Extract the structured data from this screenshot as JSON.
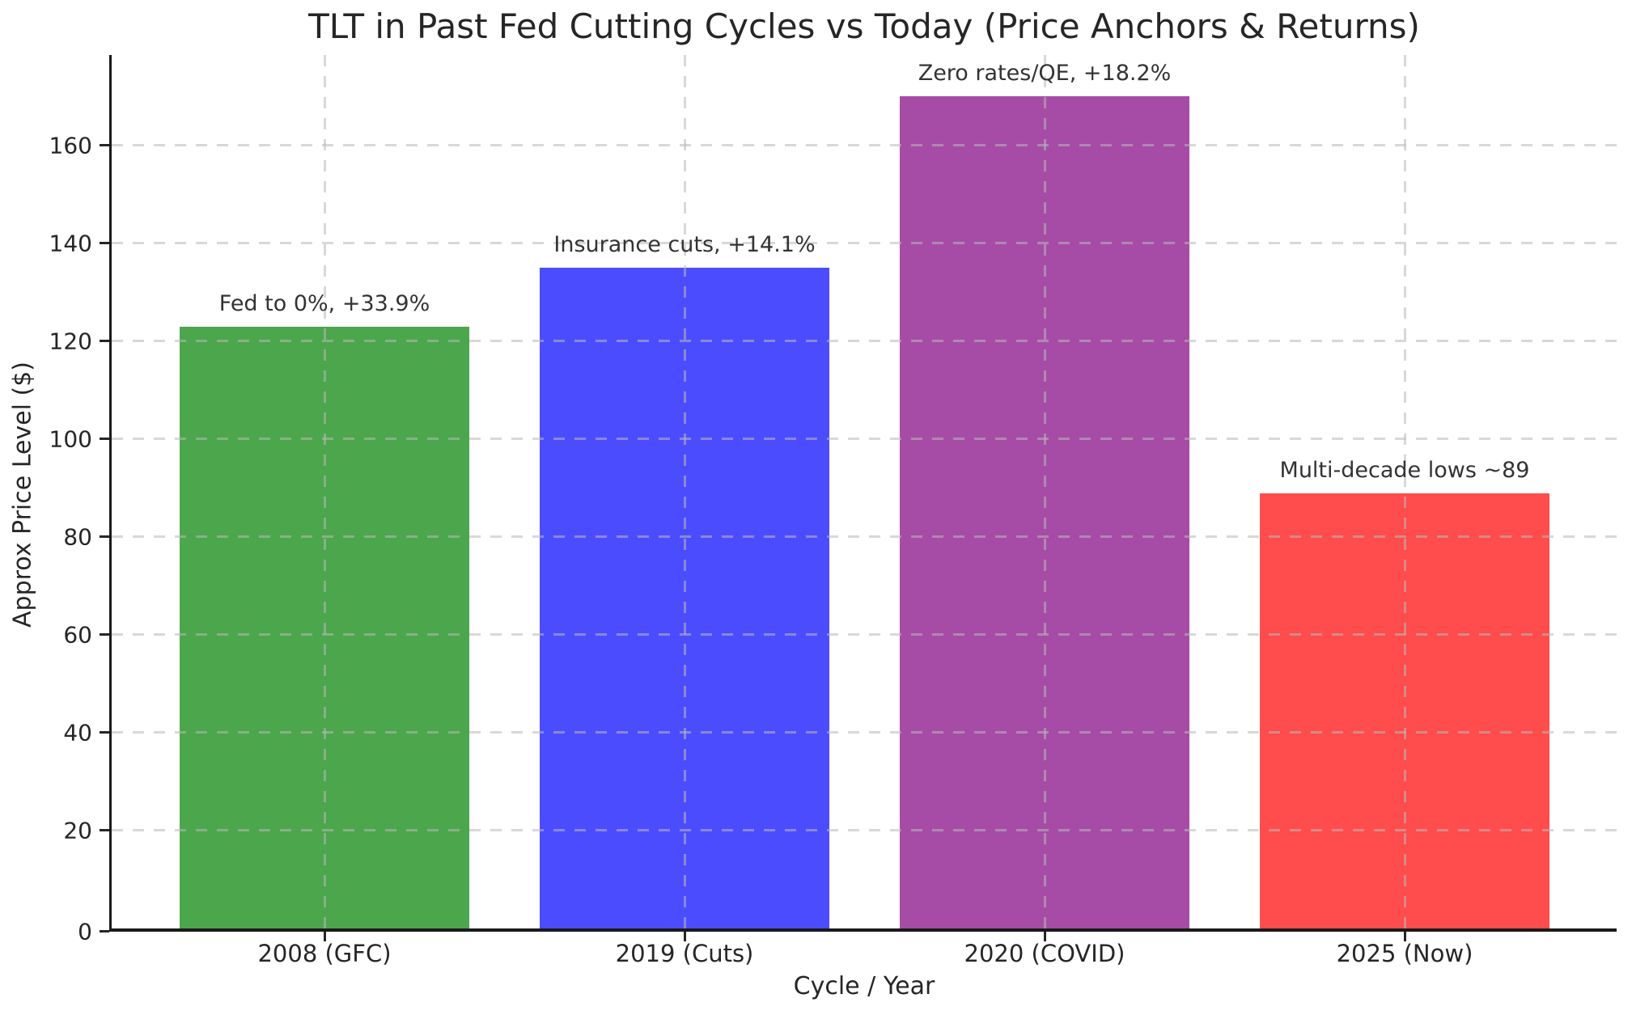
{
  "chart_data": {
    "type": "bar",
    "title": "TLT in Past Fed Cutting Cycles vs Today (Price Anchors & Returns)",
    "xlabel": "Cycle / Year",
    "ylabel": "Approx Price Level ($)",
    "categories": [
      "2008 (GFC)",
      "2019 (Cuts)",
      "2020 (COVID)",
      "2025 (Now)"
    ],
    "values": [
      123,
      135,
      170,
      89
    ],
    "annotations": [
      "Fed to 0%, +33.9%",
      "Insurance cuts, +14.1%",
      "Zero rates/QE, +18.2%",
      "Multi-decade lows ~89"
    ],
    "bar_colors": [
      "#008000",
      "#0000FF",
      "#800080",
      "#FF0000"
    ],
    "bar_alpha": 0.7,
    "yticks": [
      0,
      20,
      40,
      60,
      80,
      100,
      120,
      140,
      160
    ],
    "ylim": [
      0,
      178.5
    ],
    "grid": {
      "on": true,
      "style": "dashed",
      "color": "#C8C8C8",
      "axes": "both"
    },
    "legend": {
      "visible": false
    },
    "background_color": "#FFFFFF",
    "text_color": "#262626"
  }
}
